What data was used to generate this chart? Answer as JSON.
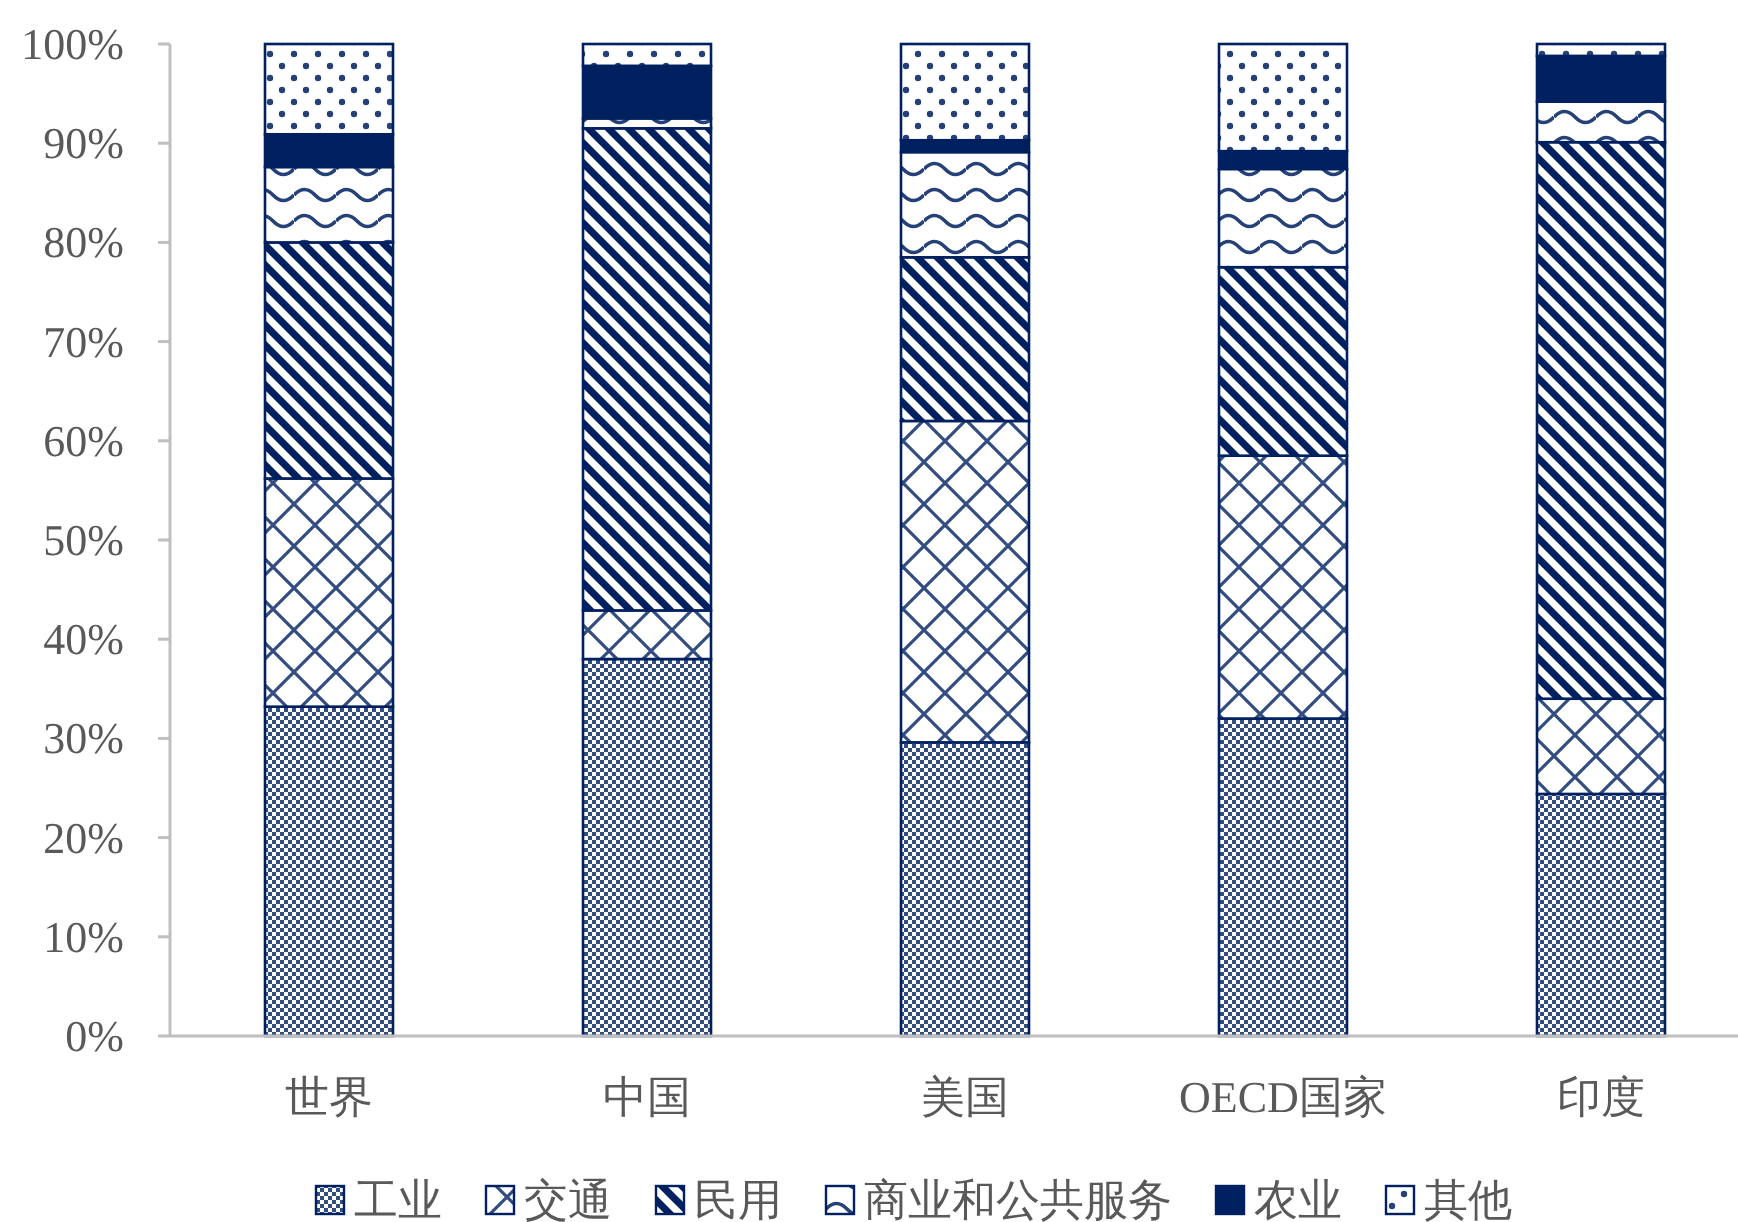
{
  "chart_data": {
    "type": "bar",
    "stacked": true,
    "categories": [
      "世界",
      "中国",
      "美国",
      "OECD国家",
      "印度"
    ],
    "series": [
      {
        "name": "工业",
        "color": "#002060",
        "values": [
          33.2,
          38.0,
          29.6,
          32.0,
          24.4
        ]
      },
      {
        "name": "交通",
        "color": "#002060",
        "values": [
          23.0,
          4.9,
          32.4,
          26.5,
          9.6
        ]
      },
      {
        "name": "民用",
        "color": "#002060",
        "values": [
          23.8,
          48.6,
          16.5,
          19.0,
          56.1
        ]
      },
      {
        "name": "商业和公共服务",
        "color": "#002060",
        "values": [
          7.6,
          1.0,
          10.6,
          9.9,
          4.1
        ]
      },
      {
        "name": "农业",
        "color": "#002060",
        "values": [
          3.3,
          5.3,
          1.2,
          1.8,
          4.6
        ]
      },
      {
        "name": "其他",
        "color": "#002060",
        "values": [
          9.1,
          2.2,
          9.7,
          10.8,
          1.2
        ]
      }
    ],
    "ylim": [
      0,
      100
    ],
    "yticks": [
      {
        "value": 0,
        "label": "0%"
      },
      {
        "value": 10,
        "label": "10%"
      },
      {
        "value": 20,
        "label": "20%"
      },
      {
        "value": 30,
        "label": "30%"
      },
      {
        "value": 40,
        "label": "40%"
      },
      {
        "value": 50,
        "label": "50%"
      },
      {
        "value": 60,
        "label": "60%"
      },
      {
        "value": 70,
        "label": "70%"
      },
      {
        "value": 80,
        "label": "80%"
      },
      {
        "value": 90,
        "label": "90%"
      },
      {
        "value": 100,
        "label": "100%"
      }
    ],
    "legend": "bottom"
  }
}
